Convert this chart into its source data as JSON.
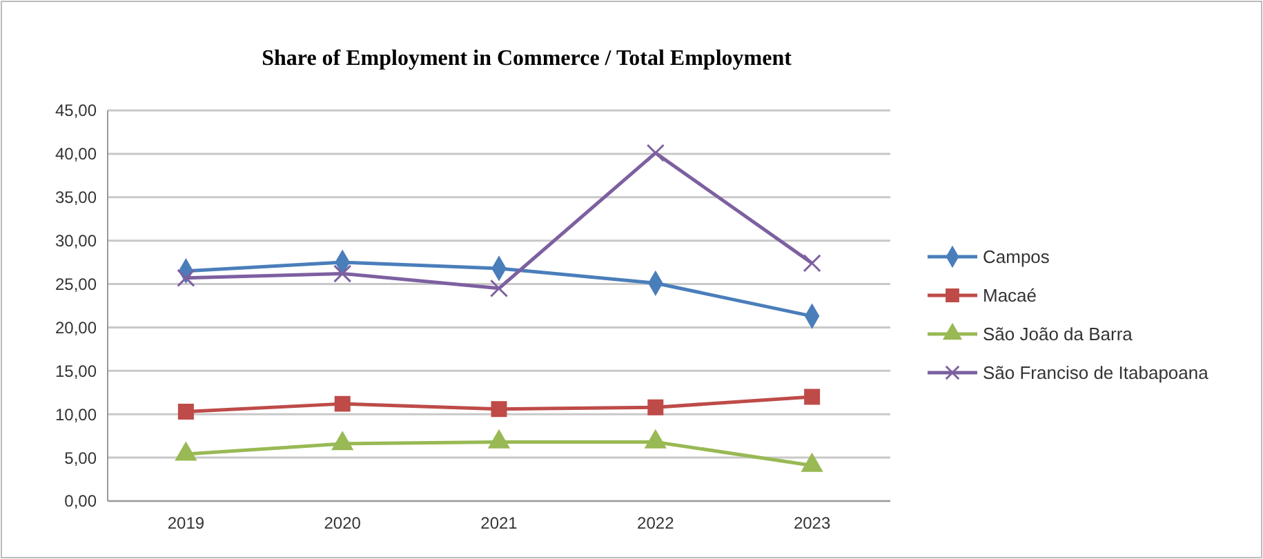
{
  "chart_data": {
    "type": "line",
    "title": "Share of Employment in Commerce / Total Employment",
    "categories": [
      "2019",
      "2020",
      "2021",
      "2022",
      "2023"
    ],
    "series": [
      {
        "name": "Campos",
        "color": "#4a7ebb",
        "marker": "diamond",
        "values": [
          26.5,
          27.5,
          26.8,
          25.1,
          21.3
        ]
      },
      {
        "name": "Macaé",
        "color": "#be4b48",
        "marker": "square",
        "values": [
          10.3,
          11.2,
          10.6,
          10.8,
          12.0
        ]
      },
      {
        "name": "São João da Barra",
        "color": "#98b954",
        "marker": "triangle",
        "values": [
          5.4,
          6.6,
          6.8,
          6.8,
          4.1
        ]
      },
      {
        "name": "São Franciso de Itabapoana",
        "color": "#7d60a0",
        "marker": "cross",
        "values": [
          25.7,
          26.2,
          24.5,
          40.1,
          27.4
        ]
      }
    ],
    "ylim": [
      0,
      45
    ],
    "yticks": [
      {
        "value": 0,
        "label": "0,00"
      },
      {
        "value": 5,
        "label": "5,00"
      },
      {
        "value": 10,
        "label": "10,00"
      },
      {
        "value": 15,
        "label": "15,00"
      },
      {
        "value": 20,
        "label": "20,00"
      },
      {
        "value": 25,
        "label": "25,00"
      },
      {
        "value": 30,
        "label": "30,00"
      },
      {
        "value": 35,
        "label": "35,00"
      },
      {
        "value": 40,
        "label": "40,00"
      },
      {
        "value": 45,
        "label": "45,00"
      }
    ],
    "grid": "y",
    "legend": "right",
    "line_style": "solid"
  }
}
